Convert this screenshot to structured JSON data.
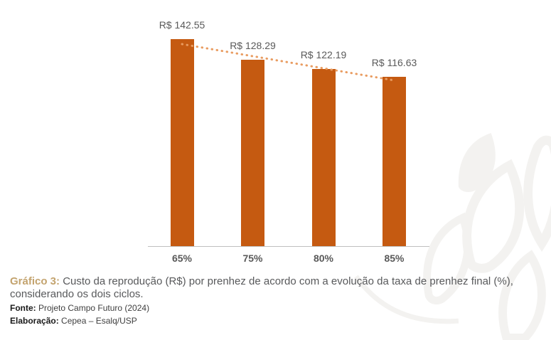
{
  "chart_data": {
    "type": "bar",
    "categories": [
      "65%",
      "75%",
      "80%",
      "85%"
    ],
    "values": [
      142.55,
      128.29,
      122.19,
      116.63
    ],
    "data_labels": [
      "R$ 142.55",
      "R$ 128.29",
      "R$ 122.19",
      "R$ 116.63"
    ],
    "title": "",
    "xlabel": "",
    "ylabel": "",
    "ylim": [
      0,
      150
    ],
    "grid": "off",
    "legend": "none",
    "y_axis_visible": false,
    "trendline": {
      "type": "linear",
      "style": "dotted",
      "color": "#E99C61"
    }
  },
  "colors": {
    "bar": "#C55A11",
    "trend_dots": "#E99C61",
    "axis": "#BFBFBF",
    "label_text": "#595959",
    "caption_accent": "#C3A36E",
    "caption_text": "#58595B",
    "watermark": "#F3F2F0"
  },
  "caption": {
    "prefix": "Gráfico 3:",
    "text": "Custo da reprodução (R$) por prenhez de acordo com a evolução da taxa de prenhez final (%), considerando os dois ciclos."
  },
  "source": {
    "label": "Fonte:",
    "value": "Projeto Campo Futuro (2024)"
  },
  "elaboration": {
    "label": "Elaboração:",
    "value": "Cepea – Esalq/USP"
  }
}
